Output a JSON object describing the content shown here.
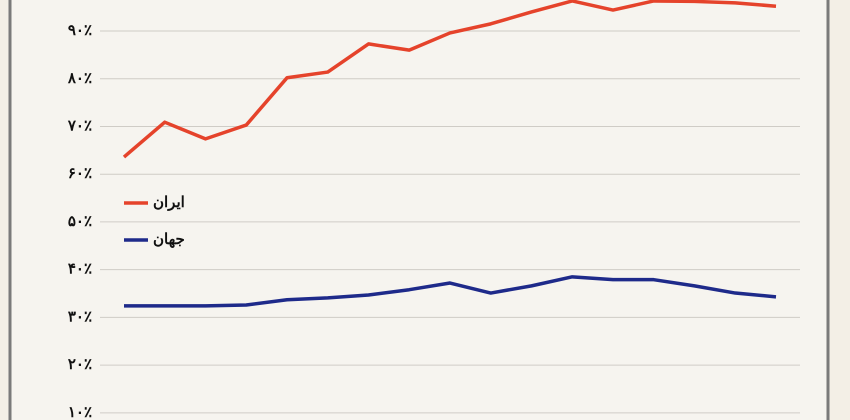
{
  "chart_data": {
    "type": "line",
    "categories": [
      null,
      null,
      null,
      null,
      null,
      null,
      null,
      null,
      null,
      null,
      null,
      null,
      null,
      null,
      null,
      null,
      null
    ],
    "series": [
      {
        "name": "ایران",
        "color": "#e5432b",
        "values": [
          63.6,
          70.9,
          67.4,
          70.3,
          80.2,
          81.4,
          87.3,
          86.0,
          89.6,
          91.5,
          94.0,
          96.3,
          94.4,
          96.3,
          96.2,
          95.9,
          95.2
        ]
      },
      {
        "name": "جهان",
        "color": "#1e2a8a",
        "values": [
          32.4,
          32.4,
          32.4,
          32.6,
          33.7,
          34.1,
          34.7,
          35.8,
          37.2,
          35.1,
          36.6,
          38.5,
          37.9,
          37.9,
          36.6,
          35.1,
          34.3
        ]
      }
    ],
    "ylim": [
      8.5,
      96.5
    ],
    "yticks": [
      {
        "value": 10,
        "label": "۱۰٪"
      },
      {
        "value": 20,
        "label": "۲۰٪"
      },
      {
        "value": 30,
        "label": "۳۰٪"
      },
      {
        "value": 40,
        "label": "۴۰٪"
      },
      {
        "value": 50,
        "label": "۵۰٪"
      },
      {
        "value": 60,
        "label": "۶۰٪"
      },
      {
        "value": 70,
        "label": "۷۰٪"
      },
      {
        "value": 80,
        "label": "۸۰٪"
      },
      {
        "value": 90,
        "label": "۹۰٪"
      }
    ],
    "grid": true
  }
}
